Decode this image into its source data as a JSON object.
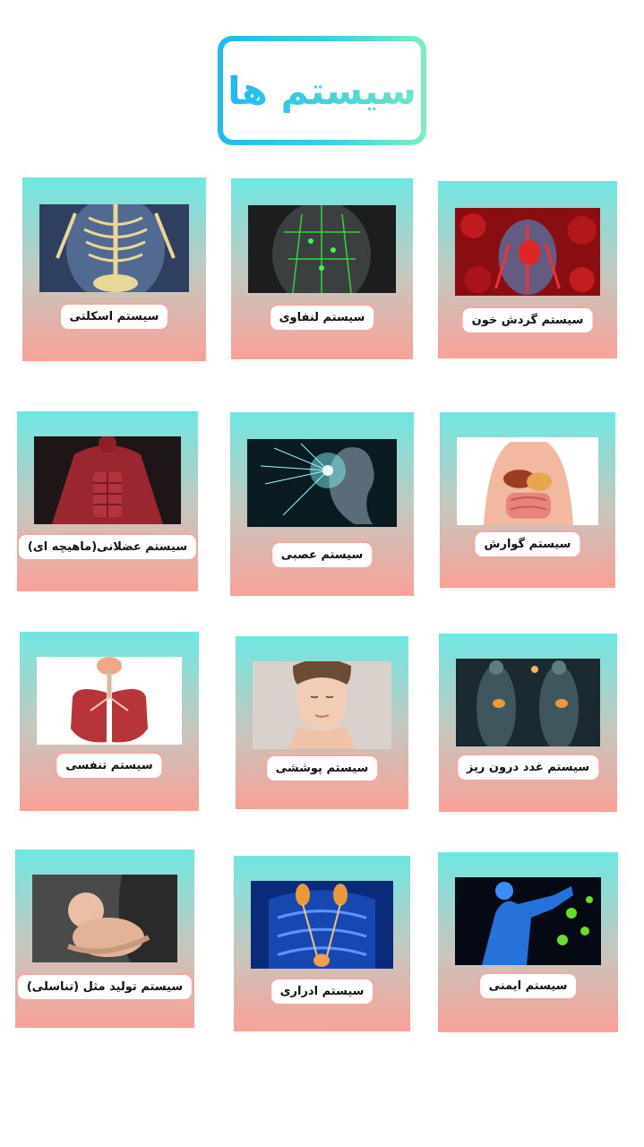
{
  "header": {
    "title": "سیستم ها"
  },
  "cards": [
    {
      "label": "سیستم گردش خون",
      "image": "circulatory-system-image"
    },
    {
      "label": "سیستم لنفاوی",
      "image": "lymphatic-system-image"
    },
    {
      "label": "سیستم اسکلتی",
      "image": "skeletal-system-image"
    },
    {
      "label": "سیستم گوارش",
      "image": "digestive-system-image"
    },
    {
      "label": "سیستم عصبی",
      "image": "nervous-system-image"
    },
    {
      "label": "سیستم عضلانی(ماهیچه ای)",
      "image": "muscular-system-image"
    },
    {
      "label": "سیستم غدد درون ریز",
      "image": "endocrine-system-image"
    },
    {
      "label": "سیستم پوششی",
      "image": "integumentary-system-image"
    },
    {
      "label": "سیستم تنفسی",
      "image": "respiratory-system-image"
    },
    {
      "label": "سیستم ایمنی",
      "image": "immune-system-image"
    },
    {
      "label": "سیستم ادراری",
      "image": "urinary-system-image"
    },
    {
      "label": "سیستم تولید مثل (تناسلی)",
      "image": "reproductive-system-image"
    }
  ]
}
